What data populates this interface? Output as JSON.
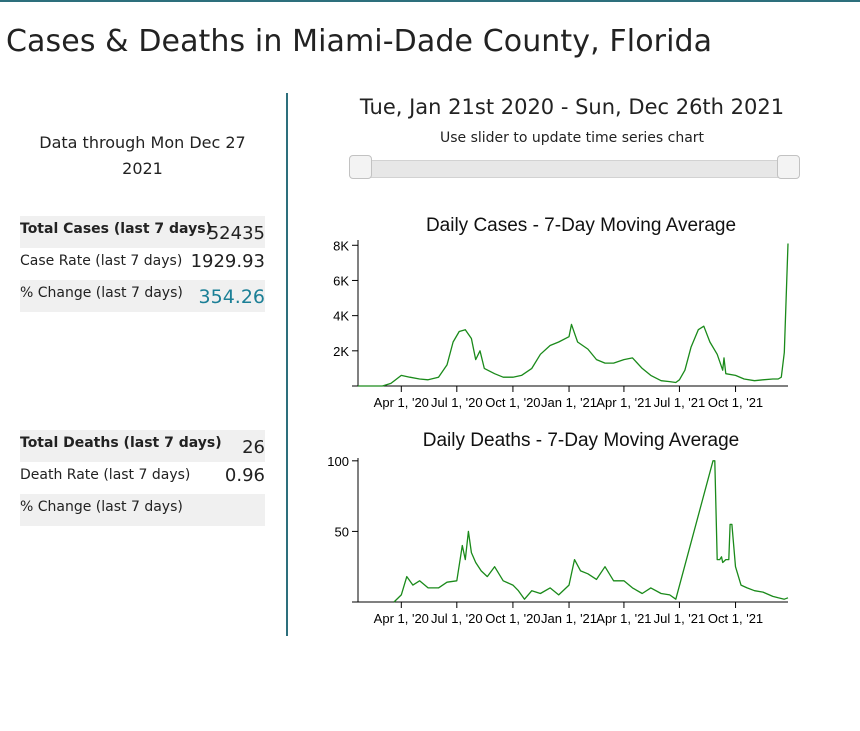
{
  "page": {
    "title": "Cases & Deaths in Miami-Dade County, Florida",
    "accent_color": "#2d6f7c"
  },
  "summary": {
    "data_through": "Data through Mon Dec 27 2021",
    "cases": [
      {
        "label": "Total Cases (last 7 days)",
        "value": "52435"
      },
      {
        "label": "Case Rate (last 7 days)",
        "value": "1929.93"
      },
      {
        "label": "% Change (last 7 days)",
        "value": "354.26",
        "value_color": "#1b7f96"
      }
    ],
    "deaths": [
      {
        "label": "Total Deaths (last 7 days)",
        "value": "26"
      },
      {
        "label": "Death Rate (last 7 days)",
        "value": "0.96"
      },
      {
        "label": "% Change (last 7 days)",
        "value": ""
      }
    ]
  },
  "controls": {
    "date_range": "Tue, Jan 21st 2020 - Sun, Dec 26th 2021",
    "slider_hint": "Use slider to update time series chart",
    "slider": {
      "start_fraction": 0.0,
      "end_fraction": 1.0
    }
  },
  "chart_data": [
    {
      "type": "line",
      "title": "Daily Cases - 7-Day Moving Average",
      "xlabel": "",
      "ylabel": "",
      "x_domain": [
        "2020-01-21",
        "2021-12-26"
      ],
      "ylim": [
        0,
        8300
      ],
      "y_ticks": [
        {
          "v": 2000,
          "label": "2K"
        },
        {
          "v": 4000,
          "label": "4K"
        },
        {
          "v": 6000,
          "label": "6K"
        },
        {
          "v": 8000,
          "label": "8K"
        }
      ],
      "x_ticks": [
        {
          "date": "2020-04-01",
          "label": "Apr 1, '20"
        },
        {
          "date": "2020-07-01",
          "label": "Jul 1, '20"
        },
        {
          "date": "2020-10-01",
          "label": "Oct 1, '20"
        },
        {
          "date": "2021-01-01",
          "label": "Jan 1, '21"
        },
        {
          "date": "2021-04-01",
          "label": "Apr 1, '21"
        },
        {
          "date": "2021-07-01",
          "label": "Jul 1, '21"
        },
        {
          "date": "2021-10-01",
          "label": "Oct 1, '21"
        }
      ],
      "grid": false,
      "legend": "none",
      "color": "#1a8a1a",
      "series": [
        {
          "x": [
            "2020-01-21",
            "2020-03-01",
            "2020-03-15",
            "2020-04-01",
            "2020-04-15",
            "2020-05-01",
            "2020-05-15",
            "2020-06-01",
            "2020-06-15",
            "2020-06-25",
            "2020-07-05",
            "2020-07-15",
            "2020-07-25",
            "2020-08-01",
            "2020-08-08",
            "2020-08-15",
            "2020-09-01",
            "2020-09-15",
            "2020-10-01",
            "2020-10-15",
            "2020-11-01",
            "2020-11-15",
            "2020-12-01",
            "2020-12-15",
            "2021-01-01",
            "2021-01-05",
            "2021-01-10",
            "2021-01-15",
            "2021-02-01",
            "2021-02-15",
            "2021-03-01",
            "2021-03-15",
            "2021-04-01",
            "2021-04-15",
            "2021-05-01",
            "2021-05-15",
            "2021-06-01",
            "2021-06-15",
            "2021-06-25",
            "2021-07-01",
            "2021-07-10",
            "2021-07-20",
            "2021-08-01",
            "2021-08-10",
            "2021-08-20",
            "2021-09-01",
            "2021-09-10",
            "2021-09-12",
            "2021-09-15",
            "2021-10-01",
            "2021-10-15",
            "2021-11-01",
            "2021-11-15",
            "2021-12-01",
            "2021-12-10",
            "2021-12-15",
            "2021-12-20",
            "2021-12-26"
          ],
          "y": [
            0,
            0,
            150,
            600,
            500,
            400,
            350,
            500,
            1200,
            2500,
            3100,
            3200,
            2700,
            1500,
            2000,
            1000,
            700,
            500,
            500,
            600,
            1000,
            1800,
            2300,
            2500,
            2800,
            3500,
            3000,
            2500,
            2100,
            1500,
            1300,
            1300,
            1500,
            1600,
            1000,
            600,
            300,
            250,
            200,
            350,
            900,
            2200,
            3200,
            3400,
            2500,
            1800,
            900,
            1600,
            700,
            600,
            400,
            300,
            350,
            400,
            400,
            500,
            1900,
            8100
          ]
        }
      ]
    },
    {
      "type": "line",
      "title": "Daily Deaths - 7-Day Moving Average",
      "xlabel": "",
      "ylabel": "",
      "x_domain": [
        "2020-01-21",
        "2021-12-26"
      ],
      "ylim": [
        0,
        102
      ],
      "y_ticks": [
        {
          "v": 50,
          "label": "50"
        },
        {
          "v": 100,
          "label": "100"
        }
      ],
      "x_ticks": [
        {
          "date": "2020-04-01",
          "label": "Apr 1, '20"
        },
        {
          "date": "2020-07-01",
          "label": "Jul 1, '20"
        },
        {
          "date": "2020-10-01",
          "label": "Oct 1, '20"
        },
        {
          "date": "2021-01-01",
          "label": "Jan 1, '21"
        },
        {
          "date": "2021-04-01",
          "label": "Apr 1, '21"
        },
        {
          "date": "2021-07-01",
          "label": "Jul 1, '21"
        },
        {
          "date": "2021-10-01",
          "label": "Oct 1, '21"
        }
      ],
      "grid": false,
      "legend": "none",
      "color": "#1a8a1a",
      "series": [
        {
          "x": [
            "2020-03-20",
            "2020-04-01",
            "2020-04-10",
            "2020-04-20",
            "2020-05-01",
            "2020-05-15",
            "2020-06-01",
            "2020-06-15",
            "2020-07-01",
            "2020-07-10",
            "2020-07-15",
            "2020-07-20",
            "2020-07-25",
            "2020-08-01",
            "2020-08-10",
            "2020-08-20",
            "2020-09-01",
            "2020-09-15",
            "2020-10-01",
            "2020-10-10",
            "2020-10-20",
            "2020-11-01",
            "2020-11-15",
            "2020-12-01",
            "2020-12-15",
            "2021-01-01",
            "2021-01-10",
            "2021-01-20",
            "2021-02-01",
            "2021-02-15",
            "2021-03-01",
            "2021-03-15",
            "2021-04-01",
            "2021-04-15",
            "2021-05-01",
            "2021-05-15",
            "2021-06-01",
            "2021-06-15",
            "2021-06-25",
            "2021-08-25",
            "2021-08-28",
            "2021-09-01",
            "2021-09-05",
            "2021-09-08",
            "2021-09-10",
            "2021-09-15",
            "2021-09-20",
            "2021-09-22",
            "2021-09-25",
            "2021-10-01",
            "2021-10-10",
            "2021-10-20",
            "2021-11-01",
            "2021-11-15",
            "2021-12-01",
            "2021-12-10",
            "2021-12-20",
            "2021-12-26"
          ],
          "y": [
            0,
            5,
            18,
            12,
            15,
            10,
            10,
            14,
            15,
            40,
            30,
            50,
            35,
            28,
            22,
            18,
            25,
            15,
            12,
            8,
            2,
            8,
            6,
            10,
            5,
            12,
            30,
            22,
            20,
            16,
            25,
            15,
            15,
            10,
            6,
            10,
            6,
            5,
            2,
            100,
            100,
            30,
            30,
            32,
            28,
            30,
            30,
            55,
            55,
            25,
            12,
            10,
            8,
            7,
            4,
            3,
            2,
            3
          ]
        }
      ]
    }
  ]
}
